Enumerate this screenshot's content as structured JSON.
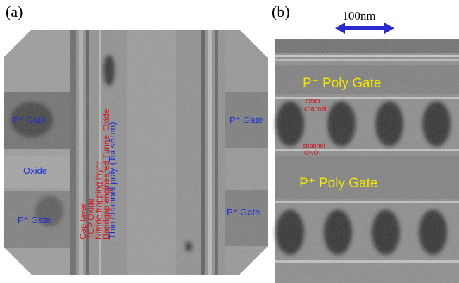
{
  "panels": [
    {
      "label": "(a)",
      "annotations": {
        "left_gate_top": "P⁺ Gate",
        "oxide": "Oxide",
        "left_gate_bottom": "P⁺ Gate",
        "right_gate_top": "P⁺ Gate",
        "right_gate_bottom": "P⁺ Gate",
        "layers": [
          "Cap layer",
          "TCP Oxide",
          "Nitride trapping layer",
          "Bandgap engineered Tunnel Oxide"
        ],
        "channel": "Thin channel poly (Tsi <6nm)"
      }
    },
    {
      "label": "(b)",
      "scale_bar": "100nm",
      "annotations": {
        "gate_top": "P⁺ Poly Gate",
        "gate_bottom": "P⁺ Poly Gate",
        "ono_top": "ONO",
        "channel_top": "channel",
        "channel_bottom": "channel",
        "ono_bottom": "ONO"
      }
    }
  ]
}
